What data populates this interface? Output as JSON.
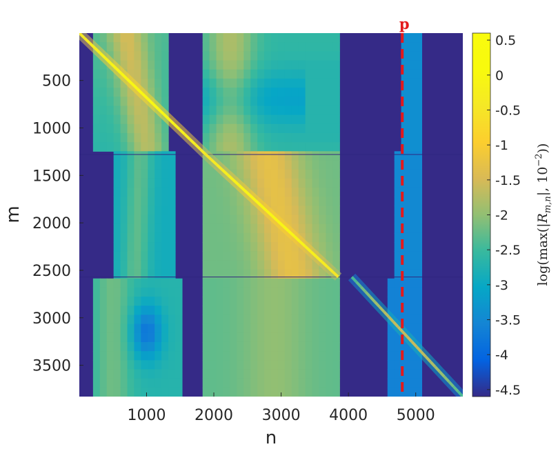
{
  "chart_data": {
    "type": "heatmap",
    "title": "",
    "xlabel": "n",
    "ylabel": "m",
    "xlim": [
      1,
      5700
    ],
    "ylim": [
      1,
      3830
    ],
    "y_reversed": true,
    "xticks": [
      1000,
      2000,
      3000,
      4000,
      5000
    ],
    "yticks": [
      500,
      1000,
      1500,
      2000,
      2500,
      3000,
      3500
    ],
    "colormap": "parula",
    "colorbar": {
      "label": "log(max(|R_{m,n}|, 10^{-2}))",
      "label_parts": [
        "log(max(|",
        "R",
        "m,n",
        "|, 10",
        "−2",
        "))"
      ],
      "range": [
        -4.6,
        0.6
      ],
      "ticks": [
        0.5,
        0,
        -0.5,
        -1,
        -1.5,
        -2,
        -2.5,
        -3,
        -3.5,
        -4,
        -4.5
      ],
      "tick_labels": [
        "0.5",
        "0",
        "-0.5",
        "-1",
        "-1.5",
        "-2",
        "-2.5",
        "-3",
        "-3.5",
        "-4",
        "-4.5"
      ]
    },
    "block_row_boundaries": [
      1280,
      2570
    ],
    "blocks": [
      {
        "rows": [
          1,
          1280
        ],
        "cols": [
          1,
          1880
        ]
      },
      {
        "rows": [
          1,
          1280
        ],
        "cols": [
          1880,
          3850
        ]
      },
      {
        "rows": [
          1,
          1280
        ],
        "cols": [
          3850,
          5050
        ]
      },
      {
        "rows": [
          1280,
          2570
        ],
        "cols": [
          1,
          1880
        ]
      },
      {
        "rows": [
          1280,
          2570
        ],
        "cols": [
          1880,
          3850
        ]
      },
      {
        "rows": [
          1280,
          2570
        ],
        "cols": [
          3850,
          5050
        ]
      },
      {
        "rows": [
          2570,
          3830
        ],
        "cols": [
          1,
          1880
        ]
      },
      {
        "rows": [
          2570,
          3830
        ],
        "cols": [
          1880,
          3850
        ]
      },
      {
        "rows": [
          2570,
          3830
        ],
        "cols": [
          3850,
          5700
        ]
      }
    ],
    "diagonal_bands": [
      {
        "from": [
          1,
          1
        ],
        "to": [
          1880,
          1280
        ],
        "peak": 0.4
      },
      {
        "from": [
          1880,
          1280
        ],
        "to": [
          3850,
          2570
        ],
        "peak": 0.3
      },
      {
        "from": [
          4050,
          2570
        ],
        "to": [
          5700,
          3830
        ],
        "peak": -1.6
      }
    ],
    "marker": {
      "label": "p",
      "x": 4800,
      "color": "#e31a1c",
      "style": "dashed"
    }
  }
}
